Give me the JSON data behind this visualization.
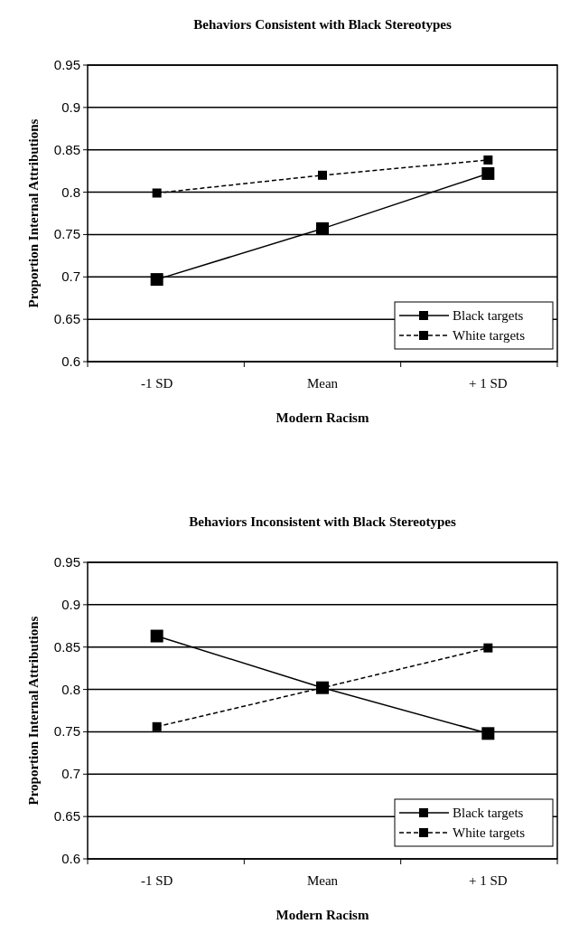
{
  "chart_data": [
    {
      "type": "line",
      "title": "Behaviors Consistent with Black Stereotypes",
      "xlabel": "Modern Racism",
      "ylabel": "Proportion Internal Attributions",
      "categories": [
        "-1 SD",
        "Mean",
        "+ 1 SD"
      ],
      "series": [
        {
          "name": "Black targets",
          "color": "#000000",
          "line_style": "solid",
          "values": [
            0.697,
            0.757,
            0.822
          ]
        },
        {
          "name": "White targets",
          "color": "#000000",
          "line_style": "dashed",
          "values": [
            0.799,
            0.82,
            0.838
          ]
        }
      ],
      "ylim": [
        0.6,
        0.95
      ],
      "yticks": [
        0.6,
        0.65,
        0.7,
        0.75,
        0.8,
        0.85,
        0.9,
        0.95
      ],
      "grid": "y",
      "legend": "bottom right",
      "marker": "square"
    },
    {
      "type": "line",
      "title": "Behaviors Inconsistent with Black Stereotypes",
      "xlabel": "Modern Racism",
      "ylabel": "Proportion Internal Attributions",
      "categories": [
        "-1 SD",
        "Mean",
        "+ 1 SD"
      ],
      "series": [
        {
          "name": "Black targets",
          "color": "#000000",
          "line_style": "solid",
          "values": [
            0.863,
            0.802,
            0.748
          ]
        },
        {
          "name": "White targets",
          "color": "#000000",
          "line_style": "dashed",
          "values": [
            0.756,
            0.802,
            0.849
          ]
        }
      ],
      "ylim": [
        0.6,
        0.95
      ],
      "yticks": [
        0.6,
        0.65,
        0.7,
        0.75,
        0.8,
        0.85,
        0.9,
        0.95
      ],
      "grid": "y",
      "legend": "bottom right",
      "marker": "square"
    }
  ]
}
